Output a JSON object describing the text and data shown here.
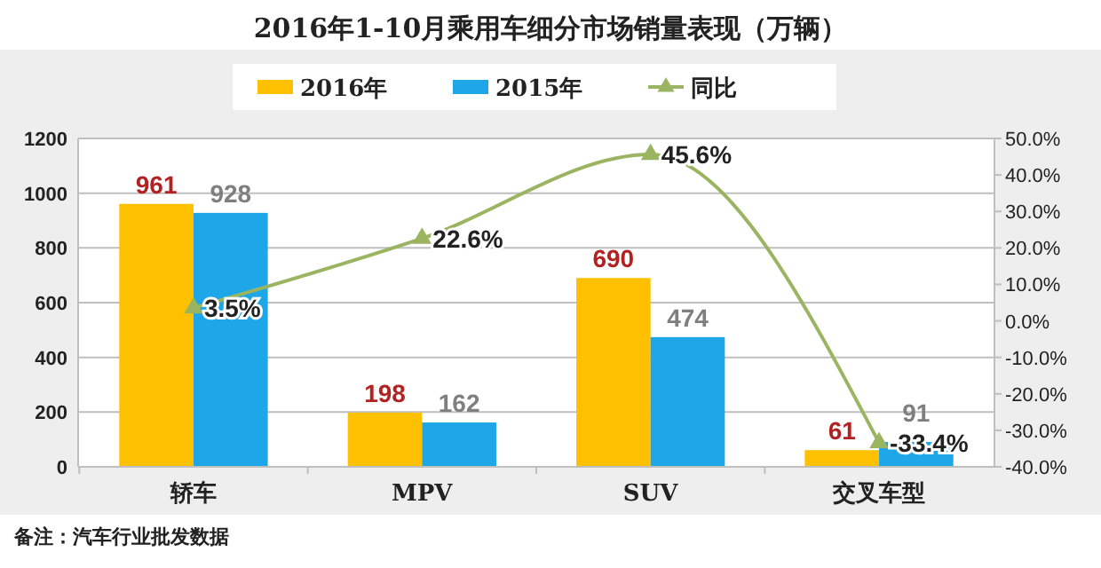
{
  "chart_data": {
    "type": "bar",
    "title": "2016年1-10月乘用车细分市场销量表现（万辆）",
    "categories": [
      "轿车",
      "MPV",
      "SUV",
      "交叉车型"
    ],
    "series": [
      {
        "name": "2016年",
        "color": "#ffc000",
        "values": [
          961,
          198,
          690,
          61
        ],
        "value_labels": [
          "961",
          "198",
          "690",
          "61"
        ]
      },
      {
        "name": "2015年",
        "color": "#1ea7e8",
        "values": [
          928,
          162,
          474,
          91
        ],
        "value_labels": [
          "928",
          "162",
          "474",
          "91"
        ]
      },
      {
        "name": "同比",
        "type": "line",
        "axis": "y2",
        "color": "#9bb462",
        "marker": "triangle",
        "values": [
          3.5,
          22.6,
          45.6,
          -33.4
        ],
        "value_labels": [
          "3.5%",
          "22.6%",
          "45.6%",
          "-33.4%"
        ]
      }
    ],
    "ylim": [
      0,
      1200
    ],
    "yticks": [
      0,
      200,
      400,
      600,
      800,
      1000,
      1200
    ],
    "y2lim": [
      -40,
      50
    ],
    "y2ticks": [
      {
        "value": -40,
        "label": "-40.0%"
      },
      {
        "value": -30,
        "label": "-30.0%"
      },
      {
        "value": -20,
        "label": "-20.0%"
      },
      {
        "value": -10,
        "label": "-10.0%"
      },
      {
        "value": 0,
        "label": "0.0%"
      },
      {
        "value": 10,
        "label": "10.0%"
      },
      {
        "value": 20,
        "label": "20.0%"
      },
      {
        "value": 30,
        "label": "30.0%"
      },
      {
        "value": 40,
        "label": "40.0%"
      },
      {
        "value": 50,
        "label": "50.0%"
      }
    ],
    "grid": "y",
    "legend": "top",
    "annotations": [
      "备注：汽车行业批发数据"
    ]
  }
}
